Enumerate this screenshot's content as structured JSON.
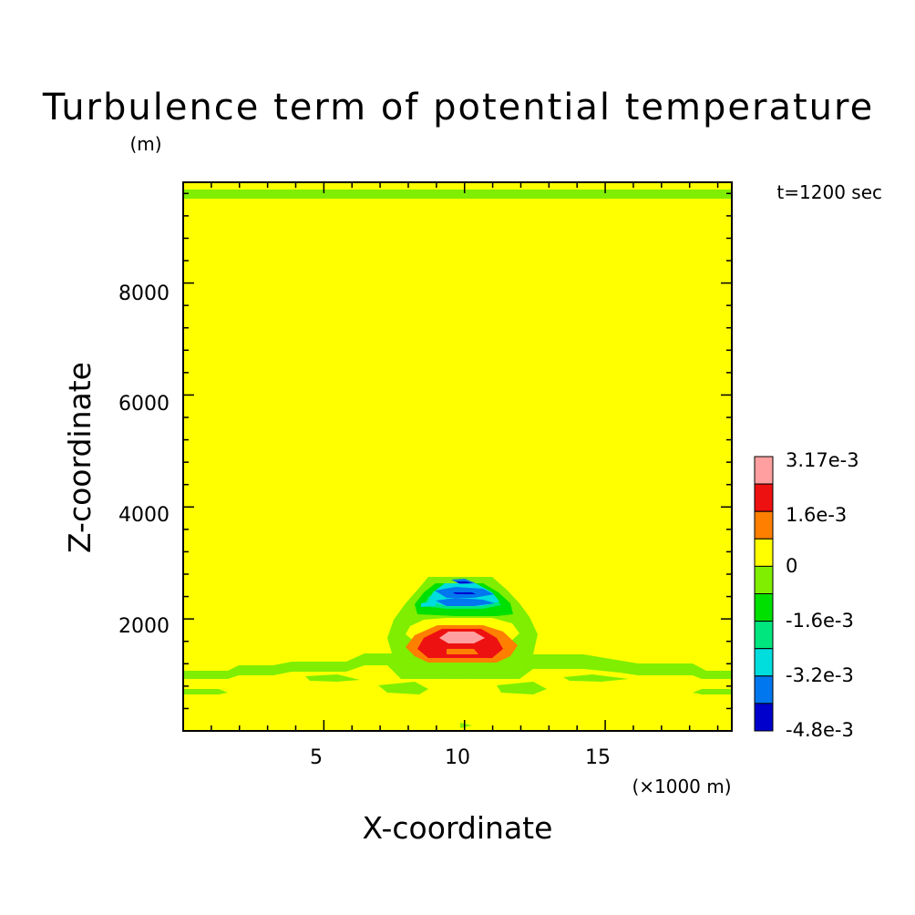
{
  "chart_data": {
    "type": "heatmap",
    "title": "Turbulence term of potential temperature",
    "unit_label": "(m)",
    "time_label": "t=1200 sec",
    "xlabel": "X-coordinate",
    "x_unit_label": "(×1000 m)",
    "ylabel": "Z-coordinate",
    "xlim": [
      0,
      19.5
    ],
    "ylim": [
      0,
      9800
    ],
    "x_ticks": [
      "5",
      "10",
      "15"
    ],
    "y_ticks": [
      "2000",
      "4000",
      "6000",
      "8000"
    ],
    "colorbar": {
      "labels": [
        "3.17e-3",
        "1.6e-3",
        "0",
        "-1.6e-3",
        "-3.2e-3",
        "-4.8e-3"
      ],
      "colors": [
        "#ff9f9f",
        "#ee1111",
        "#ff7f00",
        "#ffff00",
        "#7fee00",
        "#00e000",
        "#00e67f",
        "#00dddd",
        "#0077ee",
        "#0000cc"
      ],
      "background_color": "#ffff00"
    }
  }
}
